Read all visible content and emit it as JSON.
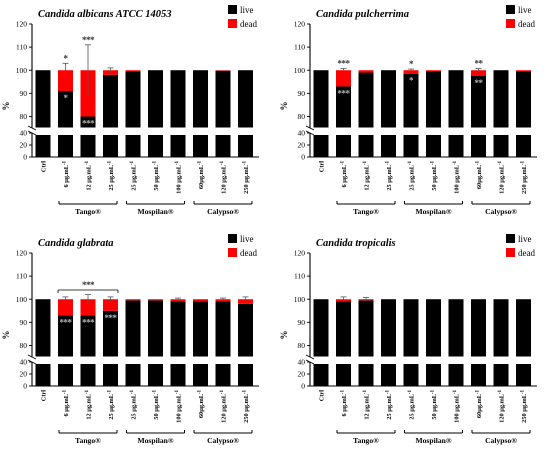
{
  "colors": {
    "live": "#000000",
    "dead": "#ff0000",
    "axis": "#000000",
    "break": "#ffffff"
  },
  "chart_data": [
    {
      "type": "bar",
      "stacked": true,
      "title": "Candida albicans ATCC 14053",
      "ylabel": "%",
      "yticks": [
        "0",
        "20",
        "40",
        "80",
        "90",
        "100",
        "110",
        "120"
      ],
      "legend": [
        {
          "name": "live",
          "color": "#000000"
        },
        {
          "name": "dead",
          "color": "#ff0000"
        }
      ],
      "legend_position": "top-right",
      "categories": [
        {
          "label": "Ctrl",
          "sup": ""
        },
        {
          "label": "6 µg.mL",
          "sup": "-1"
        },
        {
          "label": "12 µg.mL",
          "sup": "-1"
        },
        {
          "label": "25 µg.mL",
          "sup": "-1"
        },
        {
          "label": "25 µg.mL",
          "sup": "-1"
        },
        {
          "label": "50 µg.mL",
          "sup": "-1"
        },
        {
          "label": "100 µg.mL",
          "sup": "-1"
        },
        {
          "label": "60µg.mL",
          "sup": "-1"
        },
        {
          "label": "120 µg.mL",
          "sup": "-1"
        },
        {
          "label": "250 µg.mL",
          "sup": "-1"
        }
      ],
      "groups": [
        {
          "name": "Tango®",
          "from": 1,
          "to": 3
        },
        {
          "name": "Mospilan®",
          "from": 4,
          "to": 6
        },
        {
          "name": "Calypso®",
          "from": 7,
          "to": 9
        }
      ],
      "series": [
        {
          "name": "live",
          "values": [
            100,
            91,
            80,
            98,
            99.5,
            100,
            100,
            100,
            99.8,
            100
          ]
        },
        {
          "name": "dead",
          "values": [
            0,
            9,
            20,
            2,
            0.5,
            0,
            0,
            0,
            0.2,
            0
          ]
        }
      ],
      "error": [
        0,
        3,
        11,
        1,
        0,
        0,
        0,
        0,
        0,
        0
      ],
      "annotations": [
        {
          "index": 1,
          "top": "*",
          "inside": "*"
        },
        {
          "index": 2,
          "top": "***",
          "inside": "***"
        }
      ]
    },
    {
      "type": "bar",
      "stacked": true,
      "title": "Candida pulcherrima",
      "ylabel": "%",
      "yticks": [
        "0",
        "20",
        "40",
        "80",
        "90",
        "100",
        "110",
        "120"
      ],
      "legend": [
        {
          "name": "live",
          "color": "#000000"
        },
        {
          "name": "dead",
          "color": "#ff0000"
        }
      ],
      "legend_position": "top-right",
      "categories": [
        {
          "label": "Ctrl",
          "sup": ""
        },
        {
          "label": "6 µg.mL",
          "sup": "-1"
        },
        {
          "label": "12 µg.mL",
          "sup": "-1"
        },
        {
          "label": "25 µg.mL",
          "sup": "-1"
        },
        {
          "label": "25 µg.mL",
          "sup": "-1"
        },
        {
          "label": "50 µg.mL",
          "sup": "-1"
        },
        {
          "label": "100 µg.mL",
          "sup": "-1"
        },
        {
          "label": "60µg.mL",
          "sup": "-1"
        },
        {
          "label": "120 µg.mL",
          "sup": "-1"
        },
        {
          "label": "250 µg.mL",
          "sup": "-1"
        }
      ],
      "groups": [
        {
          "name": "Tango®",
          "from": 1,
          "to": 3
        },
        {
          "name": "Mospilan®",
          "from": 4,
          "to": 6
        },
        {
          "name": "Calypso®",
          "from": 7,
          "to": 9
        }
      ],
      "series": [
        {
          "name": "live",
          "values": [
            100,
            93,
            99,
            100,
            98.5,
            99.5,
            100,
            97.5,
            100,
            99.5
          ]
        },
        {
          "name": "dead",
          "values": [
            0,
            7,
            1,
            0,
            1.5,
            0.5,
            0,
            2.5,
            0,
            0.5
          ]
        }
      ],
      "error": [
        0,
        0.8,
        0,
        0,
        0.5,
        0,
        0,
        0.8,
        0,
        0
      ],
      "annotations": [
        {
          "index": 1,
          "top": "***",
          "inside": "***"
        },
        {
          "index": 4,
          "top": "*",
          "inside": "*"
        },
        {
          "index": 7,
          "top": "**",
          "inside": "**"
        }
      ]
    },
    {
      "type": "bar",
      "stacked": true,
      "title": "Candida glabrata",
      "ylabel": "%",
      "yticks": [
        "0",
        "20",
        "40",
        "80",
        "90",
        "100",
        "110",
        "120"
      ],
      "legend": [
        {
          "name": "live",
          "color": "#000000"
        },
        {
          "name": "dead",
          "color": "#ff0000"
        }
      ],
      "legend_position": "top-right",
      "categories": [
        {
          "label": "Ctrl",
          "sup": ""
        },
        {
          "label": "6 µg.mL",
          "sup": "-1"
        },
        {
          "label": "12 µg.mL",
          "sup": "-1"
        },
        {
          "label": "25 µg.mL",
          "sup": "-1"
        },
        {
          "label": "25 µg.mL",
          "sup": "-1"
        },
        {
          "label": "50 µg.mL",
          "sup": "-1"
        },
        {
          "label": "100 µg.mL",
          "sup": "-1"
        },
        {
          "label": "60µg.mL",
          "sup": "-1"
        },
        {
          "label": "120 µg.mL",
          "sup": "-1"
        },
        {
          "label": "250 µg.mL",
          "sup": "-1"
        }
      ],
      "groups": [
        {
          "name": "Tango®",
          "from": 1,
          "to": 3
        },
        {
          "name": "Mospilan®",
          "from": 4,
          "to": 6
        },
        {
          "name": "Calypso®",
          "from": 7,
          "to": 9
        }
      ],
      "series": [
        {
          "name": "live",
          "values": [
            100,
            93,
            93,
            95,
            99.5,
            99.5,
            99,
            99,
            99,
            98
          ]
        },
        {
          "name": "dead",
          "values": [
            0,
            7,
            7,
            5,
            0.5,
            0.5,
            1,
            1,
            1,
            2
          ]
        }
      ],
      "error": [
        0,
        1,
        2,
        1,
        0,
        0,
        0.5,
        0,
        0.5,
        1
      ],
      "annotations": [
        {
          "index": 1,
          "top": "",
          "inside": "***"
        },
        {
          "index": 2,
          "top": "",
          "inside": "***"
        },
        {
          "index": 3,
          "top": "",
          "inside": "***"
        }
      ],
      "bracket": {
        "from": 1,
        "to": 3,
        "label": "***"
      }
    },
    {
      "type": "bar",
      "stacked": true,
      "title": "Candida tropicalis",
      "ylabel": "%",
      "yticks": [
        "0",
        "20",
        "40",
        "80",
        "90",
        "100",
        "110",
        "120"
      ],
      "legend": [
        {
          "name": "live",
          "color": "#000000"
        },
        {
          "name": "dead",
          "color": "#ff0000"
        }
      ],
      "legend_position": "top-right",
      "categories": [
        {
          "label": "Ctrl",
          "sup": ""
        },
        {
          "label": "6 µg.mL",
          "sup": "-1"
        },
        {
          "label": "12 µg.mL",
          "sup": "-1"
        },
        {
          "label": "25 µg.mL",
          "sup": "-1"
        },
        {
          "label": "25 µg.mL",
          "sup": "-1"
        },
        {
          "label": "50 µg.mL",
          "sup": "-1"
        },
        {
          "label": "100 µg.mL",
          "sup": "-1"
        },
        {
          "label": "60µg.mL",
          "sup": "-1"
        },
        {
          "label": "120 µg.mL",
          "sup": "-1"
        },
        {
          "label": "250 µg.mL",
          "sup": "-1"
        }
      ],
      "groups": [
        {
          "name": "Tango®",
          "from": 1,
          "to": 3
        },
        {
          "name": "Mospilan®",
          "from": 4,
          "to": 6
        },
        {
          "name": "Calypso®",
          "from": 7,
          "to": 9
        }
      ],
      "series": [
        {
          "name": "live",
          "values": [
            100,
            99,
            99.5,
            100,
            100,
            100,
            100,
            100,
            100,
            100
          ]
        },
        {
          "name": "dead",
          "values": [
            0,
            1,
            0.5,
            0,
            0,
            0,
            0,
            0,
            0,
            0
          ]
        }
      ],
      "error": [
        0,
        1,
        0.8,
        0,
        0,
        0,
        0,
        0,
        0,
        0
      ],
      "annotations": []
    }
  ]
}
